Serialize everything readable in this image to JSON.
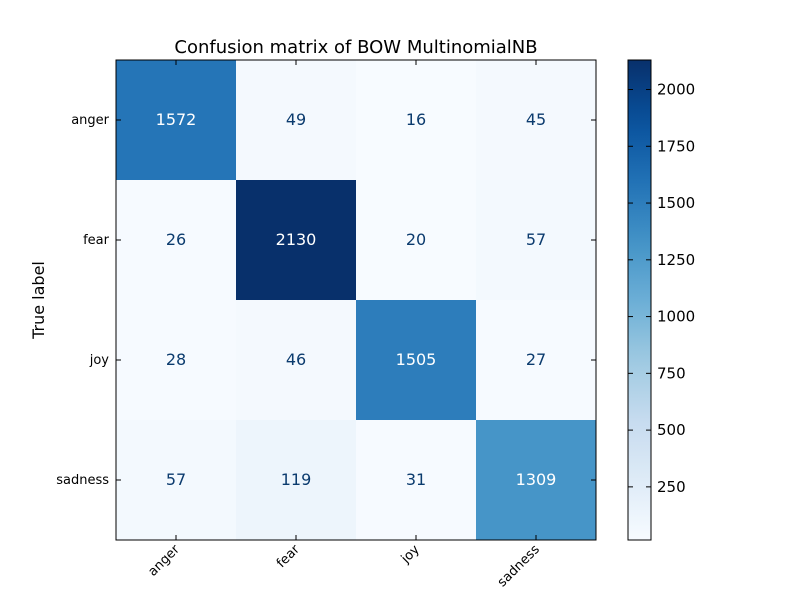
{
  "chart_data": {
    "type": "heatmap",
    "title": "Confusion matrix of BOW MultinomialNB",
    "ylabel": "True label",
    "xlabel": "",
    "x_categories": [
      "anger",
      "fear",
      "joy",
      "sadness"
    ],
    "y_categories": [
      "anger",
      "fear",
      "joy",
      "sadness"
    ],
    "values": [
      [
        1572,
        49,
        16,
        45
      ],
      [
        26,
        2130,
        20,
        57
      ],
      [
        28,
        46,
        1505,
        27
      ],
      [
        57,
        119,
        31,
        1309
      ]
    ],
    "colormap": "Blues",
    "color_range": [
      16,
      2130
    ],
    "colorbar_ticks": [
      250,
      500,
      750,
      1000,
      1250,
      1500,
      1750,
      2000
    ],
    "grid": false
  }
}
